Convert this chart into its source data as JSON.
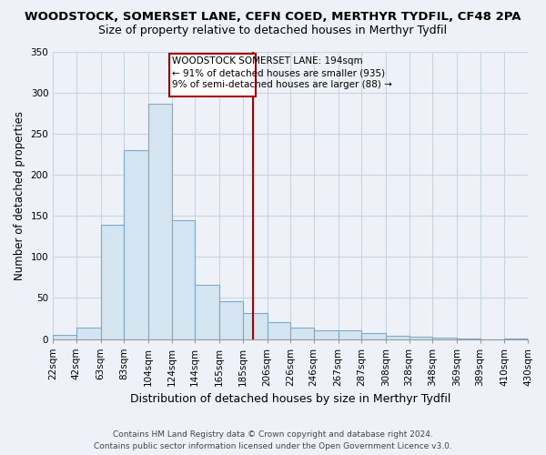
{
  "title": "WOODSTOCK, SOMERSET LANE, CEFN COED, MERTHYR TYDFIL, CF48 2PA",
  "subtitle": "Size of property relative to detached houses in Merthyr Tydfil",
  "xlabel": "Distribution of detached houses by size in Merthyr Tydfil",
  "ylabel": "Number of detached properties",
  "bar_labels": [
    "22sqm",
    "42sqm",
    "63sqm",
    "83sqm",
    "104sqm",
    "124sqm",
    "144sqm",
    "165sqm",
    "185sqm",
    "206sqm",
    "226sqm",
    "246sqm",
    "267sqm",
    "287sqm",
    "308sqm",
    "328sqm",
    "348sqm",
    "369sqm",
    "389sqm",
    "410sqm",
    "430sqm"
  ],
  "bar_values": [
    5,
    14,
    139,
    230,
    286,
    145,
    66,
    46,
    32,
    20,
    14,
    10,
    10,
    7,
    4,
    3,
    2,
    1,
    0,
    1
  ],
  "bar_color": "#d4e4f0",
  "bar_edge_color": "#7baacb",
  "bg_color": "#eef2f8",
  "grid_color": "#c8d4e0",
  "property_line_color": "#aa0000",
  "annotation_title": "WOODSTOCK SOMERSET LANE: 194sqm",
  "annotation_line1": "← 91% of detached houses are smaller (935)",
  "annotation_line2": "9% of semi-detached houses are larger (88) →",
  "ylim": [
    0,
    350
  ],
  "yticks": [
    0,
    50,
    100,
    150,
    200,
    250,
    300,
    350
  ],
  "bin_edges": [
    22,
    42,
    63,
    83,
    104,
    124,
    144,
    165,
    185,
    206,
    226,
    246,
    267,
    287,
    308,
    328,
    348,
    369,
    389,
    410,
    430
  ],
  "property_sqm": 194,
  "footer1": "Contains HM Land Registry data © Crown copyright and database right 2024.",
  "footer2": "Contains public sector information licensed under the Open Government Licence v3.0.",
  "title_fontsize": 9.5,
  "subtitle_fontsize": 9,
  "xlabel_fontsize": 9,
  "ylabel_fontsize": 8.5,
  "tick_fontsize": 7.5,
  "footer_fontsize": 6.5
}
